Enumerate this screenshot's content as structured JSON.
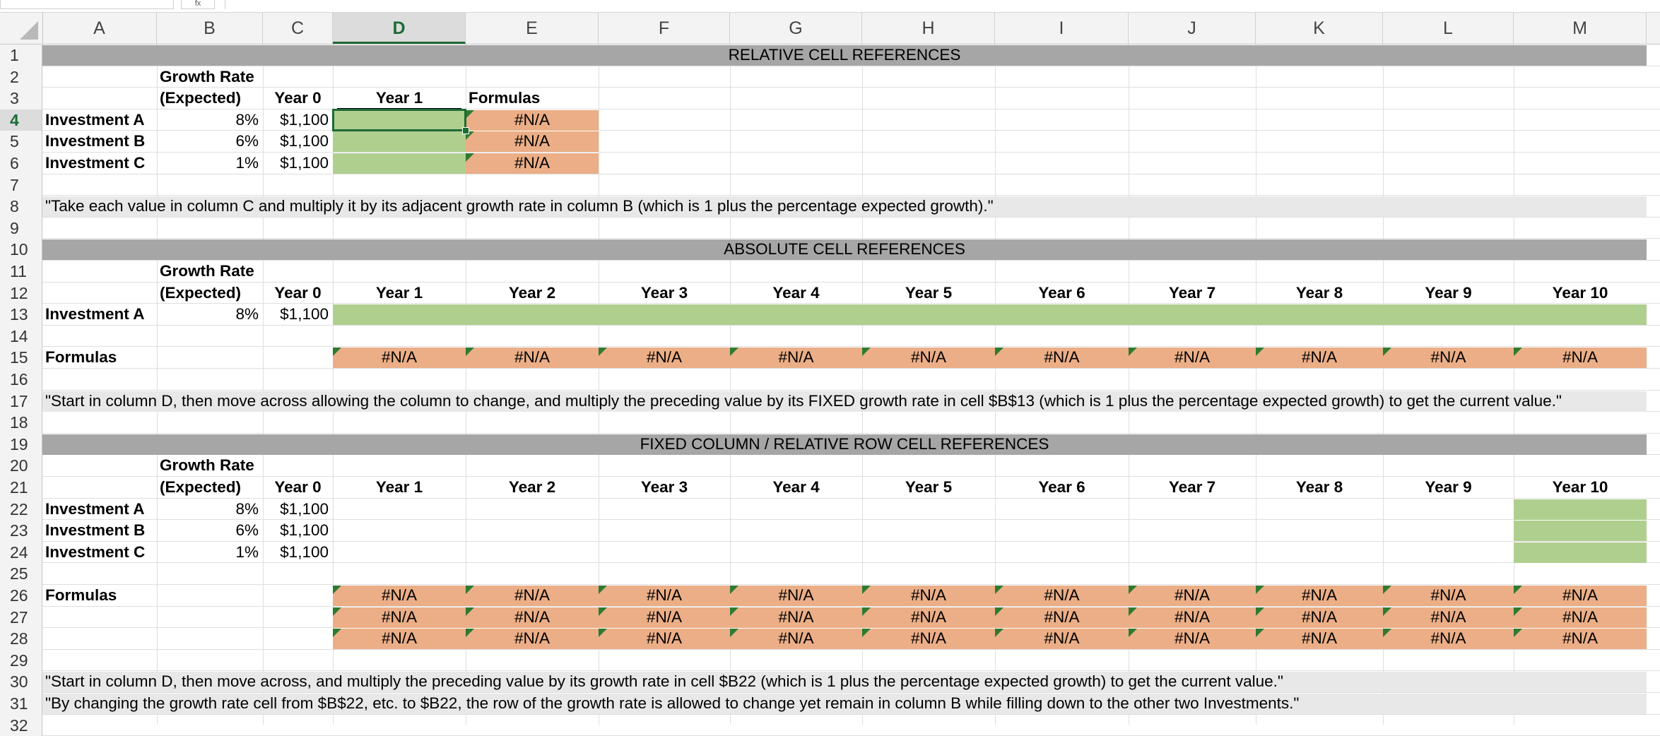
{
  "toolbar": {
    "fx_label": "fx"
  },
  "columns": [
    "A",
    "B",
    "C",
    "D",
    "E",
    "F",
    "G",
    "H",
    "I",
    "J",
    "K",
    "L",
    "M"
  ],
  "selected_column": "D",
  "row_numbers": [
    "1",
    "2",
    "3",
    "4",
    "5",
    "6",
    "7",
    "8",
    "9",
    "10",
    "11",
    "12",
    "13",
    "14",
    "15",
    "16",
    "17",
    "18",
    "19",
    "20",
    "21",
    "22",
    "23",
    "24",
    "25",
    "26",
    "27",
    "28",
    "29",
    "30",
    "31",
    "32"
  ],
  "selected_row": "4",
  "colors": {
    "banner": "#a6a6a6",
    "input": "#afcf8f",
    "formula": "#ebae86",
    "note": "#e8e8e8",
    "select": "#1d6b35"
  },
  "section1": {
    "title": "RELATIVE CELL REFERENCES",
    "hdr_growth": "Growth Rate",
    "hdr_expected": "(Expected)",
    "hdr_year0": "Year 0",
    "hdr_year1": "Year 1",
    "hdr_formulas": "Formulas",
    "rows": [
      {
        "name": "Investment A",
        "rate": "8%",
        "amount": "$1,100",
        "formula": "#N/A"
      },
      {
        "name": "Investment B",
        "rate": "6%",
        "amount": "$1,100",
        "formula": "#N/A"
      },
      {
        "name": "Investment C",
        "rate": "1%",
        "amount": "$1,100",
        "formula": "#N/A"
      }
    ],
    "note": "\"Take each value in column C and multiply it by its adjacent growth rate in column B (which is 1 plus the percentage expected growth).\""
  },
  "section2": {
    "title": "ABSOLUTE CELL REFERENCES",
    "hdr_growth": "Growth Rate",
    "hdr_expected": "(Expected)",
    "hdr_year0": "Year 0",
    "years": [
      "Year 1",
      "Year 2",
      "Year 3",
      "Year 4",
      "Year 5",
      "Year 6",
      "Year 7",
      "Year 8",
      "Year 9",
      "Year 10"
    ],
    "investment": {
      "name": "Investment A",
      "rate": "8%",
      "amount": "$1,100"
    },
    "formulas_label": "Formulas",
    "formula_values": [
      "#N/A",
      "#N/A",
      "#N/A",
      "#N/A",
      "#N/A",
      "#N/A",
      "#N/A",
      "#N/A",
      "#N/A",
      "#N/A"
    ],
    "note": "\"Start in column D, then move across allowing the column to change, and multiply the preceding value by its FIXED growth rate in cell $B$13 (which is 1 plus the percentage expected growth) to get the current value.\""
  },
  "section3": {
    "title": "FIXED COLUMN / RELATIVE ROW CELL REFERENCES",
    "hdr_growth": "Growth Rate",
    "hdr_expected": "(Expected)",
    "hdr_year0": "Year 0",
    "years": [
      "Year 1",
      "Year 2",
      "Year 3",
      "Year 4",
      "Year 5",
      "Year 6",
      "Year 7",
      "Year 8",
      "Year 9",
      "Year 10"
    ],
    "rows": [
      {
        "name": "Investment A",
        "rate": "8%",
        "amount": "$1,100"
      },
      {
        "name": "Investment B",
        "rate": "6%",
        "amount": "$1,100"
      },
      {
        "name": "Investment C",
        "rate": "1%",
        "amount": "$1,100"
      }
    ],
    "formulas_label": "Formulas",
    "formula_value": "#N/A",
    "note1": "\"Start in column D, then move across, and multiply the preceding value by its growth rate in cell $B22 (which is 1 plus the percentage expected growth) to get the current value.\"",
    "note2": "\"By changing the growth rate cell from $B$22, etc. to $B22, the row of the growth rate is allowed to change yet remain in column B while filling down to the other two Investments.\""
  }
}
